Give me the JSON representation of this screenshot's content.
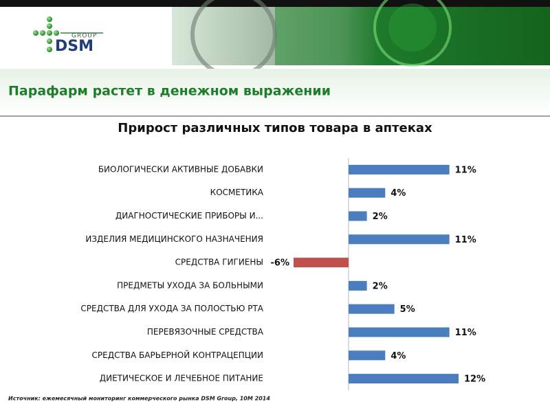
{
  "header": {
    "logo_top": "GROUP",
    "logo_main": "DSM",
    "slide_title": "Парафарм растет в денежном выражении"
  },
  "chart_data": {
    "type": "hbar",
    "title": "Прирост различных типов товара в аптеках",
    "categories": [
      "БИОЛОГИЧЕСКИ АКТИВНЫЕ ДОБАВКИ",
      "КОСМЕТИКА",
      "ДИАГНОСТИЧЕСКИЕ ПРИБОРЫ И...",
      "ИЗДЕЛИЯ МЕДИЦИНСКОГО НАЗНАЧЕНИЯ",
      "СРЕДСТВА ГИГИЕНЫ",
      "ПРЕДМЕТЫ УХОДА ЗА БОЛЬНЫМИ",
      "СРЕДСТВА ДЛЯ УХОДА ЗА ПОЛОСТЬЮ РТА",
      "ПЕРЕВЯЗОЧНЫЕ СРЕДСТВА",
      "СРЕДСТВА БАРЬЕРНОЙ КОНТРАЦЕПЦИИ",
      "ДИЕТИЧЕСКОЕ И ЛЕЧЕБНОЕ ПИТАНИЕ"
    ],
    "values": [
      11,
      4,
      2,
      11,
      -6,
      2,
      5,
      11,
      4,
      12
    ],
    "value_labels": [
      "11%",
      "4%",
      "2%",
      "11%",
      "-6%",
      "2%",
      "5%",
      "11%",
      "4%",
      "12%"
    ],
    "color": "#4a7ebf",
    "negative_color": "#c0504d",
    "xlim": [
      -6,
      12
    ],
    "source": "Источник: ежемесячный мониторинг коммерческого рынка DSM Group, 10M 2014"
  }
}
